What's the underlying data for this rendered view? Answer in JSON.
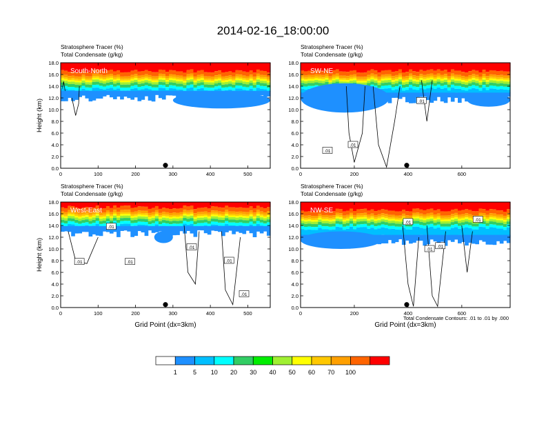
{
  "figure_title": "2014-02-16_18:00:00",
  "colors": {
    "palette": [
      "#ffffff",
      "#1e90ff",
      "#00bfff",
      "#00ffff",
      "#32cd64",
      "#00ee00",
      "#a0f032",
      "#ffff00",
      "#ffc800",
      "#ffa000",
      "#ff6400",
      "#ff0000"
    ],
    "contour": "#000000",
    "marker": "#000000"
  },
  "colorbar": {
    "labels": [
      "1",
      "5",
      "10",
      "20",
      "30",
      "40",
      "50",
      "60",
      "70",
      "100"
    ]
  },
  "bottom_note": "Total Condensate Contours: .01 to .01 by .000",
  "chart_data": [
    {
      "type": "heatmap",
      "panel": "South-North",
      "title_line1": "Stratosphere Tracer   (%)",
      "title_line2": "Total Condensate   (g/kg)",
      "ylabel": "Height (km)",
      "xlabel": "",
      "xlim": [
        0,
        560
      ],
      "ylim": [
        0,
        18
      ],
      "xticks": [
        0,
        100,
        200,
        300,
        400,
        500
      ],
      "yticks": [
        "0.0",
        "2.0",
        "4.0",
        "6.0",
        "8.0",
        "10.0",
        "12.0",
        "14.0",
        "16.0",
        "18.0"
      ],
      "marker_x": 280,
      "contour_labels": [],
      "cloud_base": 12.8,
      "cloud_top": 15.0,
      "anvils": [
        [
          300,
          560,
          10.2,
          13.0,
          0.9
        ]
      ],
      "contours": [
        [
          [
            5,
            13.6
          ],
          [
            8,
            14.8
          ],
          [
            12,
            13.2
          ]
        ],
        [
          [
            30,
            12.0
          ],
          [
            40,
            9.0
          ],
          [
            48,
            11.0
          ],
          [
            50,
            14.0
          ]
        ]
      ]
    },
    {
      "type": "heatmap",
      "panel": "SW-NE",
      "title_line1": "Stratosphere Tracer   (%)",
      "title_line2": "Total Condensate   (g/kg)",
      "ylabel": "",
      "xlabel": "",
      "xlim": [
        0,
        780
      ],
      "ylim": [
        0,
        18
      ],
      "xticks": [
        0,
        200,
        400,
        600
      ],
      "yticks": [
        "0.0",
        "2.0",
        "4.0",
        "6.0",
        "8.0",
        "10.0",
        "12.0",
        "14.0",
        "16.0",
        "18.0"
      ],
      "marker_x": 395,
      "contour_labels": [
        [
          100,
          3.0,
          ".01"
        ],
        [
          195,
          4.0,
          ".01"
        ],
        [
          450,
          11.5,
          ".01"
        ]
      ],
      "cloud_base": 12.5,
      "cloud_top": 15.0,
      "anvils": [
        [
          0,
          330,
          9.5,
          14.5,
          0.8
        ],
        [
          620,
          780,
          10.5,
          12.8,
          0.8
        ]
      ],
      "contours": [
        [
          [
            170,
            14.0
          ],
          [
            180,
            6.0
          ],
          [
            200,
            1.0
          ],
          [
            230,
            6.0
          ],
          [
            240,
            14.0
          ]
        ],
        [
          [
            270,
            14.0
          ],
          [
            290,
            4.0
          ],
          [
            320,
            0.2
          ],
          [
            350,
            8.0
          ],
          [
            370,
            14.0
          ]
        ],
        [
          [
            450,
            15.0
          ],
          [
            470,
            8.0
          ],
          [
            490,
            15.0
          ]
        ]
      ]
    },
    {
      "type": "heatmap",
      "panel": "West-East",
      "title_line1": "Stratosphere Tracer   (%)",
      "title_line2": "Total Condensate   (g/kg)",
      "ylabel": "Height (km)",
      "xlabel": "Grid Point (dx=3km)",
      "xlim": [
        0,
        560
      ],
      "ylim": [
        0,
        18
      ],
      "xticks": [
        0,
        100,
        200,
        300,
        400,
        500
      ],
      "yticks": [
        "0.0",
        "2.0",
        "4.0",
        "6.0",
        "8.0",
        "10.0",
        "12.0",
        "14.0",
        "16.0",
        "18.0"
      ],
      "marker_x": 280,
      "contour_labels": [
        [
          50,
          7.8,
          ".01"
        ],
        [
          135,
          13.8,
          ".01"
        ],
        [
          185,
          7.8,
          ".01"
        ],
        [
          350,
          10.3,
          ".01"
        ],
        [
          450,
          8.0,
          ".01"
        ],
        [
          490,
          2.3,
          ".01"
        ]
      ],
      "cloud_base": 13.5,
      "cloud_top": 15.5,
      "anvils": [
        [
          250,
          300,
          11.0,
          13.0,
          0.6
        ]
      ],
      "contours": [
        [
          [
            20,
            13.0
          ],
          [
            40,
            8.0
          ],
          [
            70,
            7.5
          ],
          [
            100,
            12.0
          ]
        ],
        [
          [
            330,
            14.0
          ],
          [
            340,
            6.0
          ],
          [
            360,
            4.0
          ],
          [
            370,
            13.0
          ]
        ],
        [
          [
            430,
            13.0
          ],
          [
            440,
            3.0
          ],
          [
            460,
            0.5
          ],
          [
            480,
            12.0
          ]
        ]
      ]
    },
    {
      "type": "heatmap",
      "panel": "NW-SE",
      "title_line1": "Stratosphere Tracer   (%)",
      "title_line2": "Total Condensate   (g/kg)",
      "ylabel": "",
      "xlabel": "Grid Point (dx=3km)",
      "xlim": [
        0,
        780
      ],
      "ylim": [
        0,
        18
      ],
      "xticks": [
        0,
        200,
        400,
        600
      ],
      "yticks": [
        "0.0",
        "2.0",
        "4.0",
        "6.0",
        "8.0",
        "10.0",
        "12.0",
        "14.0",
        "16.0",
        "18.0"
      ],
      "marker_x": 395,
      "contour_labels": [
        [
          400,
          14.6,
          ".01"
        ],
        [
          480,
          10.0,
          ".01"
        ],
        [
          520,
          10.5,
          ".01"
        ],
        [
          660,
          15.0,
          ".01"
        ]
      ],
      "cloud_base": 12.0,
      "cloud_top": 15.0,
      "anvils": [
        [
          0,
          300,
          10.0,
          13.0,
          0.9
        ]
      ],
      "contours": [
        [
          [
            380,
            14.0
          ],
          [
            400,
            4.0
          ],
          [
            420,
            0.2
          ],
          [
            440,
            12.0
          ]
        ],
        [
          [
            470,
            14.0
          ],
          [
            490,
            2.0
          ],
          [
            510,
            0.2
          ],
          [
            540,
            13.0
          ]
        ],
        [
          [
            600,
            14.0
          ],
          [
            620,
            6.0
          ],
          [
            640,
            13.0
          ]
        ]
      ]
    }
  ]
}
